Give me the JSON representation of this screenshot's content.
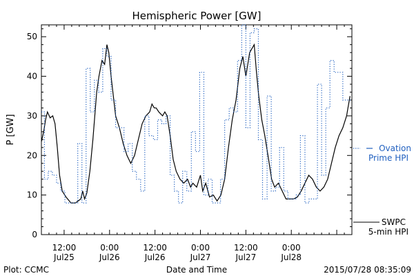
{
  "chart_data": {
    "type": "line",
    "title": "Hemispheric Power [GW]",
    "ylabel": "P [GW]",
    "xlabel": "Date and Time",
    "ylim": [
      0,
      53
    ],
    "yticks": [
      0,
      10,
      20,
      30,
      40,
      50
    ],
    "xlim_hours": [
      6.0,
      88.0
    ],
    "xticks": [
      {
        "h": 12,
        "time": "12:00",
        "date": "Jul25"
      },
      {
        "h": 24,
        "time": "0:00",
        "date": "Jul26"
      },
      {
        "h": 36,
        "time": "12:00",
        "date": "Jul26"
      },
      {
        "h": 48,
        "time": "0:00",
        "date": "Jul27"
      },
      {
        "h": 60,
        "time": "12:00",
        "date": "Jul27"
      },
      {
        "h": 72,
        "time": "0:00",
        "date": "Jul28"
      }
    ],
    "series": [
      {
        "name": "SWPC 5-min HPI",
        "style": "solid",
        "color": "#000000",
        "x": [
          6.0,
          6.6,
          7.1,
          7.6,
          8.3,
          9.0,
          9.6,
          10.2,
          10.8,
          11.5,
          12.5,
          13.8,
          15.0,
          16.4,
          16.9,
          17.4,
          18.0,
          18.8,
          19.6,
          20.6,
          21.2,
          22.0,
          22.7,
          23.3,
          23.8,
          24.4,
          25.0,
          25.6,
          26.6,
          27.6,
          28.6,
          29.6,
          30.6,
          31.6,
          32.6,
          33.6,
          34.6,
          35.2,
          35.8,
          36.3,
          37.0,
          38.0,
          38.6,
          39.2,
          40.0,
          40.8,
          41.6,
          42.6,
          43.6,
          44.6,
          45.4,
          46.0,
          47.0,
          48.0,
          48.6,
          49.4,
          50.4,
          51.4,
          52.4,
          53.4,
          54.4,
          55.4,
          56.4,
          57.4,
          58.4,
          59.2,
          60.0,
          61.0,
          61.6,
          62.2,
          62.8,
          63.4,
          64.2,
          65.0,
          66.0,
          66.8,
          67.6,
          68.6,
          69.6,
          70.6,
          71.6,
          72.6,
          73.6,
          74.6,
          75.6,
          76.6,
          77.6,
          78.6,
          79.6,
          80.6,
          81.6,
          82.6,
          83.6,
          84.6,
          85.6,
          86.6,
          87.5
        ],
        "y": [
          23.5,
          26,
          29,
          31,
          29.5,
          30,
          28,
          22,
          15,
          11,
          9.5,
          8,
          8,
          9,
          11,
          9,
          10.5,
          16,
          24,
          36,
          40,
          44,
          43,
          48,
          46,
          40,
          35,
          30,
          27,
          23,
          20,
          18,
          20,
          24,
          28,
          30,
          31,
          33,
          32,
          32,
          31,
          30,
          31,
          30,
          25,
          19,
          16,
          14,
          13,
          14,
          12,
          13,
          12,
          15,
          11,
          13,
          9.5,
          10,
          8.5,
          10,
          14,
          22,
          29,
          34,
          42,
          45,
          40,
          46,
          47,
          48,
          41,
          35,
          29,
          25,
          19,
          14,
          12,
          13,
          11,
          9,
          9,
          9,
          9.5,
          11,
          13,
          15,
          14,
          12,
          11,
          12,
          14,
          18,
          22,
          25,
          27,
          30,
          35
        ]
      },
      {
        "name": "Ovation Prime HPI",
        "style": "dotted",
        "color": "#1f5fbf",
        "x": [
          6.0,
          6.8,
          7.8,
          8.9,
          10.0,
          11.1,
          12.2,
          13.3,
          14.4,
          15.6,
          16.7,
          17.8,
          18.9,
          20.0,
          21.1,
          22.2,
          23.3,
          24.4,
          25.6,
          26.7,
          27.8,
          28.9,
          30.0,
          31.1,
          32.2,
          33.3,
          34.4,
          35.6,
          36.7,
          37.8,
          38.9,
          40.0,
          41.1,
          42.2,
          43.3,
          44.4,
          45.6,
          46.7,
          47.8,
          48.9,
          50.0,
          51.1,
          52.2,
          53.3,
          54.4,
          55.6,
          56.7,
          57.8,
          58.9,
          60.0,
          61.1,
          62.2,
          63.3,
          64.4,
          65.6,
          66.7,
          67.8,
          68.9,
          70.0,
          71.1,
          72.2,
          73.3,
          74.4,
          75.6,
          76.7,
          77.8,
          78.9,
          80.0,
          81.1,
          82.2,
          83.3,
          84.4,
          85.6,
          86.7
        ],
        "y": [
          31,
          14,
          16,
          15,
          13,
          11,
          8,
          8,
          8,
          23,
          8,
          42,
          31,
          39,
          36,
          47,
          45,
          34,
          27,
          27,
          21,
          23,
          16,
          14,
          11,
          30,
          25,
          24,
          29,
          28,
          30,
          15,
          11,
          8,
          16,
          11,
          26,
          21,
          41,
          10,
          14,
          8,
          8,
          14,
          29,
          32,
          31,
          44,
          53,
          27,
          51,
          52,
          24,
          9,
          35,
          11,
          12,
          22,
          11,
          9,
          9,
          10,
          25,
          8,
          9,
          9,
          38,
          15,
          32,
          44,
          41,
          41,
          34,
          34
        ]
      }
    ],
    "legend": [
      {
        "series": "SWPC 5-min HPI",
        "line1": "SWPC",
        "line2": "5-min HPI"
      },
      {
        "series": "Ovation Prime HPI",
        "line1": "Ovation",
        "line2": "Prime HPI"
      }
    ],
    "footer_left": "Plot: CCMC",
    "footer_right": "2015/07/28 08:35:09"
  }
}
